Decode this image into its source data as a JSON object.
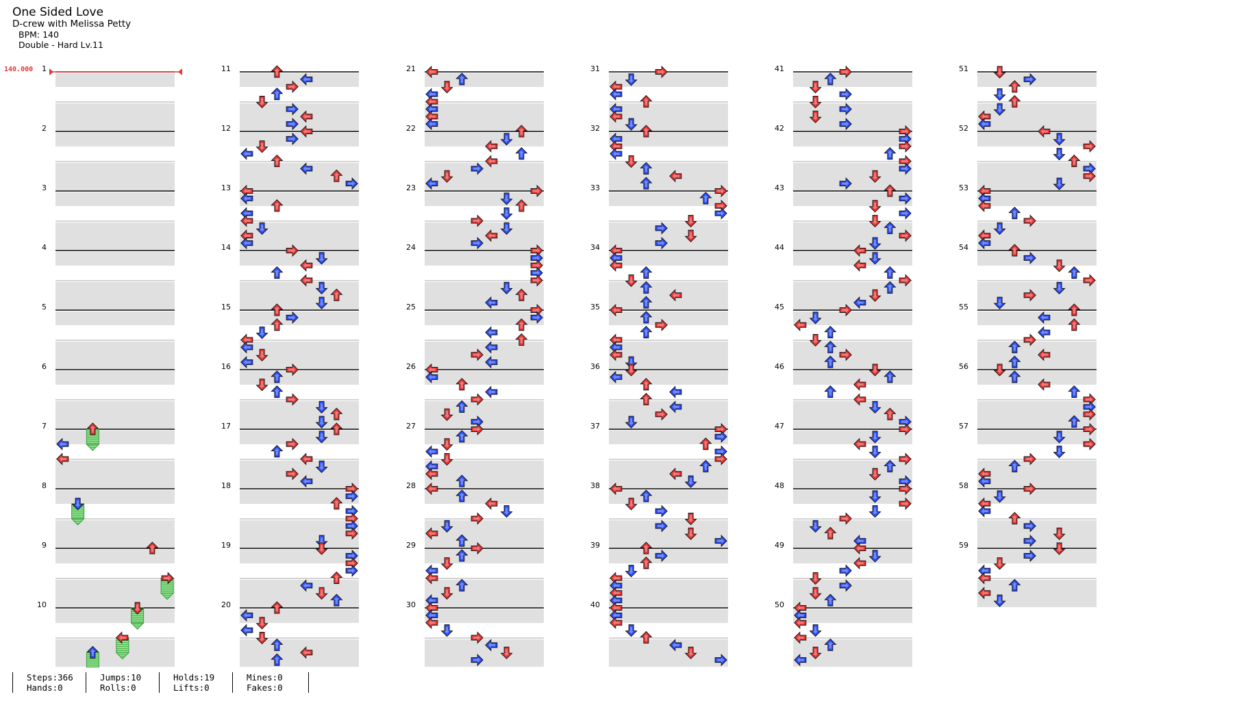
{
  "header": {
    "title": "One Sided Love",
    "artist": "D-crew with Melissa Petty",
    "bpm_line": "BPM: 140",
    "difficulty_line": "Double - Hard Lv.11"
  },
  "bpm_marker": {
    "value": "140.000",
    "color": "#e53535"
  },
  "colors": {
    "quarter_arrow": "#e53535",
    "eighth_arrow": "#2b4df5",
    "hold_body": "#6fd16f",
    "beat_band": "#e0e0e0",
    "measure_line": "#000000"
  },
  "measures": {
    "count": 59,
    "columns": [
      [
        "1",
        "2",
        "3",
        "4",
        "5",
        "6",
        "7",
        "8",
        "9",
        "10"
      ],
      [
        "11",
        "12",
        "13",
        "14",
        "15",
        "16",
        "17",
        "18",
        "19",
        "20"
      ],
      [
        "21",
        "22",
        "23",
        "24",
        "25",
        "26",
        "27",
        "28",
        "29",
        "30"
      ],
      [
        "31",
        "32",
        "33",
        "34",
        "35",
        "36",
        "37",
        "38",
        "39",
        "40"
      ],
      [
        "41",
        "42",
        "43",
        "44",
        "45",
        "46",
        "47",
        "48",
        "49",
        "50"
      ],
      [
        "51",
        "52",
        "53",
        "54",
        "55",
        "56",
        "57",
        "58",
        "59"
      ]
    ]
  },
  "lanes": [
    "left",
    "down",
    "up",
    "right",
    "left",
    "down",
    "up",
    "right"
  ],
  "stats": [
    {
      "a": "Steps:366",
      "b": "Hands:0"
    },
    {
      "a": "Jumps:10",
      "b": "Rolls:0"
    },
    {
      "a": "Holds:19",
      "b": "Lifts:0"
    },
    {
      "a": "Mines:0",
      "b": "Fakes:0"
    }
  ]
}
